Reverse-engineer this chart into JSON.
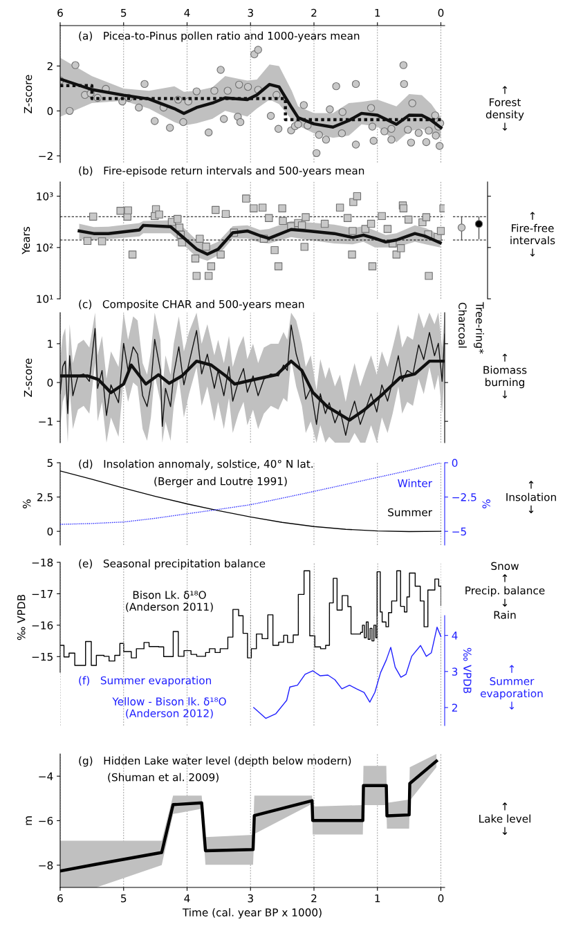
{
  "chart_data": [
    {
      "type": "scatter",
      "title": "(a)   Picea-to-Pinus pollen ratio and 1000-years mean",
      "ylabel": "Z-score",
      "annotations": [
        "↑\nForest\ndensity\n↓"
      ],
      "xlim": [
        6,
        -0.06
      ],
      "xticks": [
        6,
        5,
        4,
        3,
        2,
        1,
        0
      ],
      "ylim": [
        -2.3,
        3.8
      ],
      "yticks": [
        {
          "value": -2,
          "label": "−2"
        },
        0,
        2
      ],
      "grid": "x",
      "series": [
        {
          "type": "scatter",
          "marker": "circle",
          "color": "#c8c8c8",
          "x": [
            6.0,
            5.85,
            5.76,
            5.61,
            5.52,
            5.41,
            5.28,
            5.02,
            4.92,
            4.76,
            4.67,
            4.51,
            4.37,
            4.27,
            4.14,
            4.06,
            3.98,
            3.85,
            3.66,
            3.57,
            3.47,
            3.42,
            3.36,
            3.2,
            3.16,
            3.18,
            3.04,
            2.94,
            2.88,
            2.88,
            2.68,
            2.59,
            2.56,
            2.36,
            2.3,
            2.25,
            2.16,
            2.1,
            1.96,
            1.92,
            1.81,
            1.75,
            1.65,
            1.56,
            1.55,
            1.34,
            1.34,
            1.1,
            1.08,
            1.06,
            0.89,
            0.78,
            0.78,
            0.59,
            0.58,
            0.52,
            0.47,
            0.45,
            0.35,
            0.23,
            0.19,
            0.09,
            0.08,
            0.04,
            0.02,
            0.01
          ],
          "values": [
            1.36,
            0.0,
            2.04,
            0.71,
            0.78,
            0.58,
            0.98,
            0.42,
            0.58,
            0.15,
            1.2,
            -0.45,
            0.15,
            -0.75,
            0.5,
            -0.5,
            0.42,
            0.87,
            -0.96,
            0.9,
            1.83,
            -0.36,
            0.9,
            -0.26,
            -0.5,
            1.17,
            1.07,
            2.52,
            2.72,
            0.94,
            -0.22,
            0.71,
            -0.8,
            -0.87,
            -0.68,
            -0.6,
            0.26,
            -0.65,
            -1.88,
            -1.07,
            -1.28,
            0.07,
            1.1,
            -1.0,
            -0.05,
            1.2,
            -1.5,
            0.13,
            -0.7,
            -1.33,
            -0.91,
            -0.8,
            -1.28,
            2.04,
            1.2,
            -0.84,
            -1.41,
            0.34,
            -0.98,
            -1.39,
            -0.88,
            -0.2,
            -1.1,
            -0.7,
            -1.56,
            -0.55
          ]
        },
        {
          "type": "step",
          "line_style": "dotted",
          "color": "#111111",
          "x": [
            6,
            5.5,
            2.45,
            0
          ],
          "values": [
            1.13,
            0.55,
            -0.39,
            -0.39
          ]
        },
        {
          "type": "line",
          "color": "#111111",
          "x": [
            6.0,
            5.5,
            5.0,
            4.6,
            4.2,
            4.05,
            3.85,
            3.6,
            3.4,
            3.05,
            2.9,
            2.7,
            2.55,
            2.35,
            2.25,
            2.0,
            1.7,
            1.45,
            1.25,
            1.0,
            0.7,
            0.5,
            0.3,
            0.15,
            0.0
          ],
          "values": [
            1.42,
            0.95,
            0.7,
            0.53,
            0.1,
            -0.11,
            0.15,
            0.35,
            0.58,
            0.5,
            0.71,
            1.18,
            1.07,
            0.14,
            -0.3,
            -0.58,
            -0.72,
            -0.43,
            -0.11,
            -0.19,
            -0.6,
            -0.19,
            -0.2,
            -0.42,
            -0.75
          ],
          "upper": [
            2.37,
            1.55,
            1.0,
            0.9,
            1.1,
            0.85,
            0.9,
            1.05,
            1.55,
            1.35,
            1.4,
            2.07,
            2.0,
            0.9,
            0.2,
            -0.1,
            -0.1,
            0.35,
            0.4,
            0.5,
            0.2,
            0.75,
            0.7,
            0.3,
            -0.3
          ],
          "lower": [
            -0.26,
            0.35,
            0.45,
            0.1,
            -0.5,
            -0.65,
            -0.55,
            -0.35,
            0.0,
            -0.25,
            0.1,
            0.5,
            0.3,
            -0.4,
            -0.65,
            -1.0,
            -1.2,
            -1.1,
            -0.6,
            -0.7,
            -1.4,
            -0.9,
            -0.8,
            -1.0,
            -1.2
          ]
        }
      ]
    },
    {
      "type": "scatter",
      "title": "(b)   Fire-episode return intervals and 500-years mean",
      "ylabel": "Years",
      "annotations": [
        "↑\nFire-free\nintervals\n↓"
      ],
      "log": true,
      "xlim": [
        6,
        -0.06
      ],
      "xticks": [
        6,
        5,
        4,
        3,
        2,
        1,
        0
      ],
      "tick_labels": "y",
      "ylim": [
        10,
        1900
      ],
      "yticks": [
        {
          "value": 10,
          "label": "10¹"
        },
        {
          "value": 100,
          "label": "10²"
        },
        {
          "value": 1000,
          "label": "10³"
        }
      ],
      "grid": "x",
      "ref_lines": [
        {
          "axis": "y",
          "value": 400,
          "line_style": "dashed",
          "color": "#000000"
        },
        {
          "axis": "y",
          "value": 140,
          "line_style": "dashed",
          "color": "#000000"
        }
      ],
      "series": [
        {
          "type": "scatter",
          "marker": "square",
          "color": "#c8c8c8",
          "x": [
            5.57,
            5.48,
            5.34,
            5.05,
            4.94,
            4.93,
            4.86,
            4.51,
            4.49,
            4.44,
            4.24,
            4.15,
            4.12,
            4.1,
            4.08,
            3.87,
            3.85,
            3.8,
            3.7,
            3.66,
            3.62,
            3.55,
            3.47,
            3.39,
            3.26,
            3.07,
            2.95,
            2.81,
            2.79,
            2.71,
            2.62,
            2.56,
            2.5,
            2.49,
            2.36,
            2.25,
            2.19,
            2.15,
            2.13,
            1.83,
            1.59,
            1.47,
            1.4,
            1.39,
            1.38,
            1.32,
            1.19,
            1.1,
            1.08,
            0.93,
            0.84,
            0.76,
            0.7,
            0.63,
            0.6,
            0.59,
            0.51,
            0.29,
            0.23,
            0.2,
            0.19,
            0.05,
            0.0,
            -0.04
          ],
          "values": [
            134,
            400,
            132,
            520,
            400,
            530,
            73,
            410,
            560,
            440,
            315,
            360,
            245,
            178,
            125,
            61,
            28,
            148,
            104,
            28,
            43,
            540,
            73,
            450,
            195,
            900,
            580,
            600,
            148,
            375,
            89,
            43,
            580,
            330,
            260,
            300,
            270,
            103,
            390,
            290,
            600,
            375,
            73,
            210,
            770,
            1000,
            230,
            290,
            43,
            410,
            230,
            120,
            73,
            97,
            660,
            580,
            350,
            310,
            390,
            180,
            28,
            160,
            210,
            580
          ]
        },
        {
          "type": "line",
          "color": "#111111",
          "x": [
            5.7,
            5.47,
            5.24,
            4.75,
            4.69,
            4.26,
            4.08,
            3.85,
            3.68,
            3.51,
            3.28,
            3.05,
            2.85,
            2.71,
            2.36,
            2.08,
            1.68,
            1.39,
            1.22,
            1.04,
            0.87,
            0.7,
            0.41,
            0.24,
            0.01
          ],
          "values": [
            210,
            187,
            187,
            220,
            270,
            255,
            165,
            93,
            74,
            93,
            194,
            210,
            170,
            151,
            225,
            210,
            187,
            157,
            175,
            151,
            128,
            140,
            187,
            165,
            123
          ],
          "upper": [
            290,
            250,
            255,
            300,
            330,
            340,
            260,
            140,
            105,
            130,
            260,
            270,
            220,
            230,
            330,
            310,
            280,
            240,
            260,
            215,
            175,
            190,
            270,
            240,
            175
          ],
          "lower": [
            145,
            140,
            145,
            165,
            190,
            190,
            120,
            65,
            55,
            70,
            150,
            150,
            125,
            120,
            160,
            140,
            120,
            115,
            130,
            100,
            100,
            100,
            130,
            115,
            100
          ]
        }
      ]
    },
    {
      "type": "scatter",
      "categories": [
        "Charcoal",
        "Tree-ring*"
      ],
      "values": [
        245,
        288
      ],
      "errors": [
        [
          140,
          400
        ],
        [
          145,
          400
        ]
      ],
      "colors": [
        "#c8c8c8",
        "#000000"
      ],
      "log": true,
      "ylim": [
        10,
        1900
      ],
      "yticks": [
        {
          "value": 10,
          "label": null
        },
        {
          "value": 100,
          "label": null
        },
        {
          "value": 1000,
          "label": null
        }
      ],
      "tick_labels": "x",
      "ref_lines": [
        {
          "axis": "y",
          "value": 400,
          "line_style": "dashed",
          "color": "#000000"
        },
        {
          "axis": "y",
          "value": 140,
          "line_style": "dashed",
          "color": "#000000"
        }
      ]
    },
    {
      "type": "line",
      "title": "(c)   Composite CHAR and 500-years mean",
      "ylabel": "Z-score",
      "annotations": [
        "↑\nBiomass\nburning\n↓"
      ],
      "xlim": [
        6,
        -0.06
      ],
      "xticks": [
        6,
        5,
        4,
        3,
        2,
        1,
        0
      ],
      "tick_labels": "y",
      "ylim": [
        -1.55,
        1.8
      ],
      "yticks": [
        {
          "value": -1,
          "label": "−1"
        },
        0,
        1
      ],
      "grid": "x",
      "series": [
        {
          "color": "#111111",
          "x": [
            6.0,
            5.96,
            5.92,
            5.88,
            5.85,
            5.8,
            5.72,
            5.63,
            5.54,
            5.45,
            5.41,
            5.34,
            5.27,
            5.2,
            5.08,
            5.0,
            4.93,
            4.85,
            4.78,
            4.7,
            4.63,
            4.57,
            4.51,
            4.42,
            4.39,
            4.34,
            4.26,
            4.21,
            4.13,
            4.05,
            3.97,
            3.85,
            3.77,
            3.68,
            3.57,
            3.51,
            3.42,
            3.34,
            3.28,
            3.19,
            3.11,
            3.05,
            2.96,
            2.88,
            2.79,
            2.68,
            2.56,
            2.48,
            2.42,
            2.36,
            2.28,
            2.19,
            2.13,
            2.05,
            1.96,
            1.9,
            1.82,
            1.76,
            1.67,
            1.59,
            1.5,
            1.44,
            1.36,
            1.27,
            1.19,
            1.1,
            1.01,
            0.93,
            0.84,
            0.76,
            0.67,
            0.61,
            0.53,
            0.44,
            0.35,
            0.27,
            0.18,
            0.1,
            0.04,
            -0.02,
            -0.06
          ],
          "values": [
            -0.29,
            0.41,
            0.55,
            -0.8,
            0.69,
            -0.34,
            0.17,
            0.22,
            0.03,
            1.39,
            -0.15,
            0.31,
            -0.85,
            -0.06,
            -0.52,
            1.01,
            0.31,
            0.92,
            0.73,
            -0.34,
            -0.62,
            -0.06,
            1.11,
            0.31,
            -1.13,
            -0.15,
            -0.62,
            0.22,
            0.92,
            -0.06,
            0.5,
            1.34,
            0.22,
            0.73,
            -0.15,
            0.31,
            -0.34,
            0.41,
            -0.48,
            0.03,
            0.36,
            -0.25,
            0.17,
            -0.34,
            0.08,
            0.22,
            0.17,
            0.45,
            0.31,
            1.48,
            0.73,
            0.22,
            -0.43,
            -0.15,
            -1.08,
            -0.29,
            -0.8,
            -0.52,
            -1.04,
            -0.71,
            -1.36,
            -0.9,
            -0.48,
            -1.08,
            -0.71,
            -0.29,
            -0.76,
            -0.06,
            -0.48,
            0.03,
            0.69,
            0.03,
            0.31,
            0.22,
            0.97,
            0.59,
            1.29,
            0.69,
            1.01,
            0.03,
            1.25
          ],
          "upper": [
            0.6,
            1.2,
            1.4,
            0.2,
            1.5,
            0.5,
            1.0,
            1.1,
            0.9,
            1.8,
            0.7,
            1.2,
            0.1,
            0.8,
            0.4,
            1.8,
            1.1,
            1.7,
            1.6,
            0.5,
            0.2,
            0.8,
            1.8,
            1.1,
            -0.2,
            0.7,
            0.2,
            1.0,
            1.7,
            0.8,
            1.3,
            1.8,
            1.0,
            1.5,
            0.7,
            1.1,
            0.5,
            1.2,
            0.4,
            0.9,
            1.2,
            0.6,
            1.0,
            0.5,
            0.9,
            1.0,
            1.0,
            1.3,
            1.1,
            1.8,
            1.6,
            1.0,
            0.4,
            0.7,
            -0.2,
            0.6,
            0.1,
            0.4,
            -0.1,
            0.2,
            -0.5,
            0.0,
            0.5,
            -0.1,
            0.3,
            0.7,
            0.2,
            0.8,
            0.4,
            0.9,
            1.5,
            0.9,
            1.2,
            1.1,
            1.8,
            1.4,
            1.8,
            1.5,
            1.8,
            0.9,
            1.8
          ],
          "lower": [
            -1.2,
            -0.5,
            -0.3,
            -1.55,
            -0.2,
            -1.2,
            -0.7,
            -0.6,
            -0.8,
            0.5,
            -1.0,
            -0.5,
            -1.55,
            -0.9,
            -1.4,
            0.1,
            -0.5,
            0.0,
            -0.1,
            -1.2,
            -1.5,
            -0.9,
            0.2,
            -0.5,
            -1.55,
            -1.0,
            -1.5,
            -0.6,
            0.1,
            -0.9,
            -0.3,
            0.4,
            -0.6,
            -0.1,
            -1.0,
            -0.5,
            -1.2,
            -0.4,
            -1.3,
            -0.8,
            -0.5,
            -1.1,
            -0.7,
            -1.2,
            -0.8,
            -0.6,
            -0.7,
            -0.4,
            -0.5,
            0.6,
            -0.1,
            -0.6,
            -1.3,
            -1.0,
            -1.55,
            -1.1,
            -1.55,
            -1.4,
            -1.55,
            -1.55,
            -1.55,
            -1.55,
            -1.3,
            -1.55,
            -1.55,
            -1.1,
            -1.55,
            -0.9,
            -1.3,
            -0.8,
            -0.1,
            -0.8,
            -0.5,
            -0.6,
            0.1,
            -0.3,
            0.4,
            -0.2,
            0.2,
            -0.8,
            0.4
          ]
        },
        {
          "color": "#111111",
          "x": [
            6.0,
            5.57,
            5.4,
            5.2,
            5.0,
            4.88,
            4.65,
            4.45,
            4.28,
            4.08,
            3.85,
            3.62,
            3.39,
            3.25,
            2.93,
            2.59,
            2.36,
            2.19,
            2.02,
            1.79,
            1.44,
            1.21,
            0.93,
            0.64,
            0.41,
            0.18,
            -0.05
          ],
          "values": [
            0.17,
            0.17,
            0.08,
            -0.26,
            -0.04,
            0.45,
            -0.04,
            0.2,
            -0.02,
            0.17,
            0.55,
            0.45,
            0.17,
            -0.04,
            0.08,
            0.2,
            0.55,
            0.31,
            -0.25,
            -0.62,
            -0.97,
            -0.71,
            -0.32,
            0.13,
            0.22,
            0.55,
            0.55
          ]
        }
      ]
    },
    {
      "type": "line",
      "title": "(d)   Insolation annomaly, solstice, 40° N lat.",
      "subtitle": "(Berger and Loutre 1991)",
      "ylabel": "%",
      "y2label": "%",
      "annotations": [
        "↑\nInsolation\n↓"
      ],
      "xlim": [
        6,
        -0.06
      ],
      "xticks": [
        6,
        5,
        4,
        3,
        2,
        1,
        0
      ],
      "tick_labels": "y",
      "ylim": [
        -1,
        5
      ],
      "yticks": [
        0,
        2.5,
        5
      ],
      "y2lim": [
        -6,
        0
      ],
      "y2ticks": [
        {
          "value": -5,
          "label": "−5"
        },
        {
          "value": -2.5,
          "label": "−2.5"
        },
        0
      ],
      "grid": "x",
      "series": [
        {
          "name": "Summer",
          "color": "#000000",
          "x": [
            6,
            5.5,
            5,
            4.5,
            4,
            3.5,
            3,
            2.5,
            2,
            1.5,
            1,
            0.5,
            0
          ],
          "values": [
            4.4,
            3.8,
            3.15,
            2.55,
            2.0,
            1.5,
            1.05,
            0.65,
            0.35,
            0.15,
            0.03,
            -0.02,
            0.0
          ]
        },
        {
          "name": "Winter",
          "axis": "y2",
          "line_style": "dotted",
          "color": "#1f1fff",
          "x": [
            6,
            5.5,
            5,
            4.5,
            4,
            3.5,
            3,
            2.5,
            2,
            1.5,
            1,
            0.5,
            0
          ],
          "values": [
            -4.49,
            -4.43,
            -4.32,
            -4.05,
            -3.72,
            -3.4,
            -3.06,
            -2.58,
            -2.09,
            -1.58,
            -1.07,
            -0.56,
            0.0
          ]
        }
      ]
    },
    {
      "type": "step",
      "title": "(e)   Seasonal precipitation balance",
      "ylabel": "‰ VPDB",
      "annotations": [
        "Snow\n↑\nPrecip. balance\n↓\nRain"
      ],
      "xlim": [
        6,
        0
      ],
      "xticks": [
        6,
        5,
        4,
        3,
        2,
        1,
        0
      ],
      "tick_labels": "y",
      "ylim": [
        -14.5,
        -18
      ],
      "yticks": [
        {
          "value": -18,
          "label": "−18"
        },
        {
          "value": -17,
          "label": "−17"
        },
        {
          "value": -16,
          "label": "−16"
        },
        {
          "value": -15,
          "label": "−15"
        }
      ],
      "grid": "x",
      "series": [
        {
          "name": "Bison Lk. δ¹⁸O\n(Anderson 2011)",
          "color": "#000000",
          "x": [
            6.0,
            5.94,
            5.86,
            5.77,
            5.6,
            5.51,
            5.43,
            5.31,
            5.23,
            5.14,
            5.06,
            5.0,
            4.88,
            4.8,
            4.68,
            4.6,
            4.45,
            4.37,
            4.22,
            4.14,
            4.05,
            3.94,
            3.85,
            3.71,
            3.65,
            3.56,
            3.48,
            3.36,
            3.28,
            3.19,
            3.12,
            3.05,
            2.99,
            2.91,
            2.82,
            2.73,
            2.65,
            2.56,
            2.48,
            2.42,
            2.33,
            2.25,
            2.16,
            2.07,
            1.99,
            1.9,
            1.82,
            1.76,
            1.7,
            1.64,
            1.56,
            1.47,
            1.42,
            1.36,
            1.27,
            1.24,
            1.21,
            1.18,
            1.15,
            1.12,
            1.09,
            1.06,
            1.03,
            1.01,
            0.96,
            0.93,
            0.87,
            0.83,
            0.78,
            0.7,
            0.64,
            0.58,
            0.54,
            0.5,
            0.41,
            0.33,
            0.27,
            0.21,
            0.1,
            0.04,
            0.0
          ],
          "values": [
            -15.36,
            -14.99,
            -15.11,
            -14.72,
            -15.48,
            -14.72,
            -15.04,
            -15.01,
            -14.86,
            -15.04,
            -15.42,
            -15.16,
            -14.96,
            -15.25,
            -15.45,
            -15.32,
            -15.31,
            -15.0,
            -15.8,
            -15.01,
            -15.19,
            -15.07,
            -15.01,
            -15.13,
            -15.25,
            -15.13,
            -15.25,
            -15.62,
            -16.5,
            -16.3,
            -15.74,
            -14.96,
            -15.25,
            -15.72,
            -15.57,
            -16.33,
            -15.36,
            -15.46,
            -15.68,
            -15.45,
            -15.69,
            -16.98,
            -17.73,
            -15.66,
            -15.31,
            -15.25,
            -15.36,
            -16.71,
            -17.49,
            -16.48,
            -16.94,
            -16.59,
            -15.72,
            -15.72,
            -15.77,
            -16.0,
            -15.6,
            -16.1,
            -15.55,
            -15.9,
            -15.5,
            -16.0,
            -15.6,
            -17.7,
            -16.42,
            -16.1,
            -15.95,
            -16.4,
            -16.77,
            -17.73,
            -16.6,
            -16.42,
            -16.9,
            -17.66,
            -17.24,
            -16.77,
            -15.95,
            -17.12,
            -17.47,
            -17.24,
            -16.63
          ]
        }
      ]
    },
    {
      "type": "line",
      "title": "(f)   Summer evaporation",
      "y2label": "‰ VPDB",
      "annotations": [
        "↑\nSummer\nevaporation\n↓"
      ],
      "xlim": [
        6,
        -0.06
      ],
      "xticks": [
        6,
        5,
        4,
        3,
        2,
        1,
        0
      ],
      "tick_labels": "y",
      "y2lim": [
        1.5,
        4.55
      ],
      "y2ticks": [
        2,
        3,
        4
      ],
      "grid": "x",
      "series": [
        {
          "name": "Yellow - Bison lk. δ¹⁸O\n(Anderson 2012)",
          "axis": "y2",
          "color": "#1f1fff",
          "x": [
            2.95,
            2.76,
            2.6,
            2.43,
            2.38,
            2.26,
            2.14,
            2.02,
            1.9,
            1.78,
            1.67,
            1.56,
            1.44,
            1.33,
            1.21,
            1.12,
            1.04,
            0.95,
            0.86,
            0.79,
            0.72,
            0.63,
            0.55,
            0.46,
            0.32,
            0.23,
            0.15,
            0.06,
            0.0
          ],
          "values": [
            2.0,
            1.7,
            1.83,
            2.2,
            2.57,
            2.62,
            2.92,
            3.02,
            2.88,
            2.9,
            2.77,
            2.52,
            2.62,
            2.52,
            2.42,
            2.15,
            2.42,
            2.97,
            3.32,
            3.67,
            3.12,
            2.84,
            2.92,
            3.42,
            3.72,
            3.42,
            3.52,
            4.23,
            3.97
          ]
        }
      ]
    },
    {
      "type": "line",
      "title": "(g)   Hidden Lake water level (depth below modern)",
      "subtitle": "(Shuman et al. 2009)",
      "xlabel": "Time (cal. year BP x 1000)",
      "ylabel": "m",
      "annotations": [
        "↑\nLake level\n↓"
      ],
      "xlim": [
        6,
        -0.06
      ],
      "xticks": [
        6,
        5,
        4,
        3,
        2,
        1,
        0
      ],
      "ylim": [
        -9,
        -3
      ],
      "yticks": [
        {
          "value": -8,
          "label": "−8"
        },
        {
          "value": -6,
          "label": "−6"
        },
        {
          "value": -4,
          "label": "−4"
        }
      ],
      "grid": "x",
      "series": [
        {
          "color": "#000000",
          "x": [
            6.0,
            5.43,
            4.4,
            4.22,
            3.77,
            3.71,
            2.96,
            2.94,
            2.03,
            2.02,
            1.23,
            1.22,
            0.86,
            0.85,
            0.5,
            0.49,
            0.07
          ],
          "values": [
            -8.26,
            -7.96,
            -7.43,
            -5.28,
            -5.2,
            -7.35,
            -7.3,
            -5.77,
            -5.1,
            -5.99,
            -5.99,
            -4.42,
            -4.42,
            -5.78,
            -5.74,
            -4.33,
            -3.32
          ],
          "upper": [
            -6.9,
            -6.9,
            -6.9,
            -4.87,
            -4.87,
            -6.74,
            -6.64,
            -4.87,
            -4.87,
            -5.36,
            -5.3,
            -3.54,
            -3.54,
            -5.2,
            -5.05,
            -3.6,
            -3.0
          ],
          "lower": [
            -9.0,
            -9.0,
            -8.0,
            -5.7,
            -5.46,
            -7.98,
            -7.98,
            -6.6,
            -5.25,
            -6.62,
            -6.62,
            -5.3,
            -5.3,
            -6.36,
            -6.36,
            -5.1,
            -3.6
          ]
        }
      ]
    }
  ]
}
